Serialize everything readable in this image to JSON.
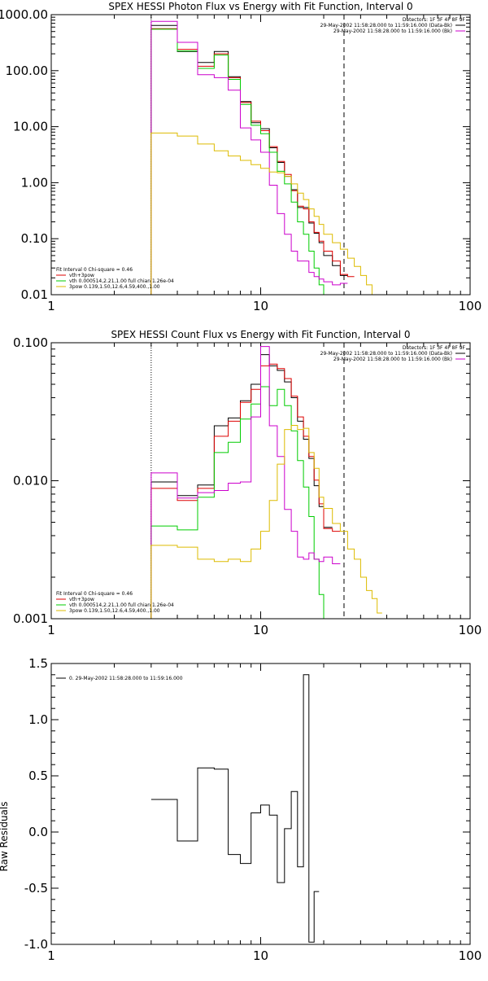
{
  "chart_data": [
    {
      "type": "line",
      "title": "SPEX HESSI Photon Flux vs Energy with Fit Function, Interval 0",
      "xlabel": "",
      "ylabel": "",
      "xscale": "log",
      "yscale": "log",
      "xlim": [
        1,
        100
      ],
      "ylim": [
        0.01,
        1000
      ],
      "x_ticks": [
        1,
        10,
        100
      ],
      "x_tick_labels": [
        "1",
        "10",
        "100"
      ],
      "y_ticks": [
        0.01,
        0.1,
        1,
        10,
        100,
        1000
      ],
      "y_tick_labels": [
        "0.01",
        "0.10",
        "1.00",
        "10.00",
        "100.00",
        "1000.00"
      ],
      "vlines": [
        {
          "x": 3,
          "style": "dotted",
          "color": "#000000"
        },
        {
          "x": 25,
          "style": "dashed",
          "color": "#000000"
        }
      ],
      "legend_right": {
        "lines": [
          {
            "text": "Detectors: 1F 3F 4F 8F 9F",
            "color": null
          },
          {
            "text": "29-May-2002 11:58:28.000 to 11:59:16.000 (Data-Bk)",
            "color": "#000000"
          },
          {
            "text": "29-May-2002 11:58:28.000 to 11:59:16.000 (Bk)",
            "color": "#cc00cc"
          }
        ]
      },
      "legend_left": {
        "lines": [
          {
            "text": "Fit Interval 0   Chi-square = 0.46",
            "color": null
          },
          {
            "text": "vth+3pow",
            "color": "#dd0000"
          },
          {
            "text": "vth 0.000514,2.21,1.00   full chian 1.26e-04",
            "color": "#00cc00"
          },
          {
            "text": "3pow 0.139,1.50,12.6,4.59,400.,1.00",
            "color": "#ddbb00"
          }
        ]
      },
      "bin_edges": [
        3,
        4,
        5,
        6,
        7,
        8,
        9,
        10,
        11,
        12,
        13,
        14,
        15,
        16,
        17,
        18,
        19,
        20,
        22,
        24,
        26,
        28,
        30,
        32,
        34,
        36
      ],
      "series": [
        {
          "name": "Data-Bk",
          "color": "#000000",
          "values": [
            640,
            220,
            140,
            220,
            78,
            28,
            11.8,
            9.2,
            4.2,
            2.3,
            1.3,
            0.75,
            0.36,
            0.36,
            0.19,
            0.125,
            0.085,
            0.05,
            0.033,
            0.022,
            null,
            null,
            null,
            null,
            null
          ]
        },
        {
          "name": "vth+3pow",
          "color": "#dd0000",
          "values": [
            560,
            240,
            120,
            200,
            75,
            27,
            12.5,
            8.5,
            4.4,
            2.4,
            1.4,
            0.72,
            0.38,
            0.34,
            0.2,
            0.13,
            0.09,
            0.06,
            0.04,
            0.023,
            0.021,
            null,
            null,
            null,
            null
          ]
        },
        {
          "name": "vth",
          "color": "#00cc00",
          "values": [
            550,
            225,
            110,
            190,
            70,
            25,
            10.6,
            7.5,
            3.5,
            1.6,
            0.95,
            0.45,
            0.2,
            0.12,
            0.06,
            0.03,
            0.015,
            0.009,
            null,
            null,
            null,
            null,
            null,
            null,
            null
          ]
        },
        {
          "name": "Bk",
          "color": "#cc00cc",
          "values": [
            760,
            320,
            85,
            75,
            45,
            9.5,
            5.8,
            3.5,
            0.9,
            0.28,
            0.12,
            0.06,
            0.04,
            0.04,
            0.025,
            0.021,
            0.019,
            0.017,
            0.015,
            0.016,
            null,
            null,
            null,
            null,
            null
          ]
        },
        {
          "name": "3pow",
          "color": "#ddbb00",
          "values": [
            7.7,
            6.8,
            4.9,
            3.7,
            3.0,
            2.5,
            2.1,
            1.8,
            1.55,
            1.5,
            1.3,
            0.95,
            0.65,
            0.5,
            0.34,
            0.25,
            0.18,
            0.12,
            0.085,
            0.065,
            0.045,
            0.032,
            0.022,
            0.015,
            0.01
          ]
        }
      ]
    },
    {
      "type": "line",
      "title": "SPEX HESSI Count Flux vs Energy with Fit Function, Interval 0",
      "xlabel": "",
      "ylabel": "",
      "xscale": "log",
      "yscale": "log",
      "xlim": [
        1,
        100
      ],
      "ylim": [
        0.001,
        0.1
      ],
      "x_ticks": [
        1,
        10,
        100
      ],
      "x_tick_labels": [
        "1",
        "10",
        "100"
      ],
      "y_ticks": [
        0.001,
        0.01,
        0.1
      ],
      "y_tick_labels": [
        "0.001",
        "0.010",
        "0.100"
      ],
      "vlines": [
        {
          "x": 3,
          "style": "dotted",
          "color": "#000000"
        },
        {
          "x": 25,
          "style": "dashed",
          "color": "#000000"
        }
      ],
      "legend_right": {
        "lines": [
          {
            "text": "Detectors: 1F 3F 4F 8F 9F",
            "color": null
          },
          {
            "text": "29-May-2002 11:58:28.000 to 11:59:16.000 (Data-Bk)",
            "color": "#000000"
          },
          {
            "text": "29-May-2002 11:58:28.000 to 11:59:16.000 (Bk)",
            "color": "#cc00cc"
          }
        ]
      },
      "legend_left": {
        "lines": [
          {
            "text": "Fit Interval 0   Chi-square = 0.46",
            "color": null
          },
          {
            "text": "vth+3pow",
            "color": "#dd0000"
          },
          {
            "text": "vth 0.000514,2.21,1.00   full chian 1.26e-04",
            "color": "#00cc00"
          },
          {
            "text": "3pow 0.139,1.50,12.6,4.59,400.,1.00",
            "color": "#ddbb00"
          }
        ]
      },
      "bin_edges": [
        3,
        4,
        5,
        6,
        7,
        8,
        9,
        10,
        11,
        12,
        13,
        14,
        15,
        16,
        17,
        18,
        19,
        20,
        22,
        24,
        26,
        28,
        30,
        32,
        34,
        36,
        38
      ],
      "series": [
        {
          "name": "Data-Bk",
          "color": "#000000",
          "values": [
            0.0098,
            0.0078,
            0.0093,
            0.025,
            0.0285,
            0.038,
            0.05,
            0.082,
            0.068,
            0.063,
            0.052,
            0.04,
            0.027,
            0.02,
            0.0145,
            0.0092,
            0.0065,
            0.0046,
            null,
            null,
            null,
            null,
            null,
            null,
            null,
            null
          ]
        },
        {
          "name": "vth+3pow",
          "color": "#dd0000",
          "values": [
            0.0088,
            0.0072,
            0.0088,
            0.021,
            0.027,
            0.037,
            0.046,
            0.068,
            0.07,
            0.065,
            0.055,
            0.041,
            0.029,
            0.021,
            0.015,
            0.0101,
            0.0068,
            0.0045,
            0.0043,
            null,
            null,
            null,
            null,
            null,
            null,
            null
          ]
        },
        {
          "name": "vth",
          "color": "#00cc00",
          "values": [
            0.0047,
            0.0044,
            0.0076,
            0.016,
            0.019,
            0.028,
            0.036,
            0.048,
            0.035,
            0.046,
            0.035,
            0.023,
            0.014,
            0.009,
            0.0055,
            0.0027,
            0.0015,
            0.0009,
            null,
            null,
            null,
            null,
            null,
            null,
            null,
            null
          ]
        },
        {
          "name": "Bk",
          "color": "#cc00cc",
          "values": [
            0.0114,
            0.0075,
            0.0082,
            0.0085,
            0.0096,
            0.0098,
            0.029,
            0.094,
            0.025,
            0.015,
            0.0062,
            0.0043,
            0.0028,
            0.0027,
            0.003,
            0.0027,
            0.0026,
            0.0028,
            0.0025,
            null,
            null,
            null,
            null,
            null,
            null,
            null
          ]
        },
        {
          "name": "3pow",
          "color": "#ddbb00",
          "values": [
            0.0034,
            0.0033,
            0.0027,
            0.0026,
            0.0027,
            0.0026,
            0.0032,
            0.0043,
            0.0072,
            0.0132,
            0.0235,
            0.0252,
            0.0235,
            0.024,
            0.016,
            0.0123,
            0.0076,
            0.0063,
            0.0049,
            0.0043,
            0.0032,
            0.0027,
            0.002,
            0.0016,
            0.0014,
            0.0011
          ]
        }
      ]
    },
    {
      "type": "line",
      "title": "",
      "xlabel": "",
      "ylabel": "Raw Residuals",
      "xscale": "log",
      "yscale": "linear",
      "xlim": [
        1,
        100
      ],
      "ylim": [
        -1.0,
        1.5
      ],
      "x_ticks": [
        1,
        10,
        100
      ],
      "x_tick_labels": [
        "1",
        "10",
        "100"
      ],
      "y_ticks": [
        -1.0,
        -0.5,
        0.0,
        0.5,
        1.0,
        1.5
      ],
      "y_tick_labels": [
        "-1.0",
        "-0.5",
        "0.0",
        "0.5",
        "1.0",
        "1.5"
      ],
      "legend_left": {
        "lines": [
          {
            "text": "0. 29-May-2002 11:58:28.000 to 11:59:16.000",
            "color": "#000000"
          }
        ]
      },
      "bin_edges": [
        3,
        4,
        5,
        6,
        7,
        8,
        9,
        10,
        11,
        12,
        13,
        14,
        15,
        16,
        17,
        18,
        19,
        20,
        22,
        24,
        26
      ],
      "series": [
        {
          "name": "0. 29-May-2002 11:58:28.000 to 11:59:16.000",
          "color": "#000000",
          "values": [
            0.29,
            -0.08,
            0.57,
            0.56,
            -0.2,
            -0.28,
            0.17,
            0.24,
            0.15,
            -0.45,
            0.03,
            0.36,
            -0.31,
            1.4,
            -0.98,
            -0.53,
            null,
            null,
            null,
            null
          ]
        }
      ]
    }
  ]
}
